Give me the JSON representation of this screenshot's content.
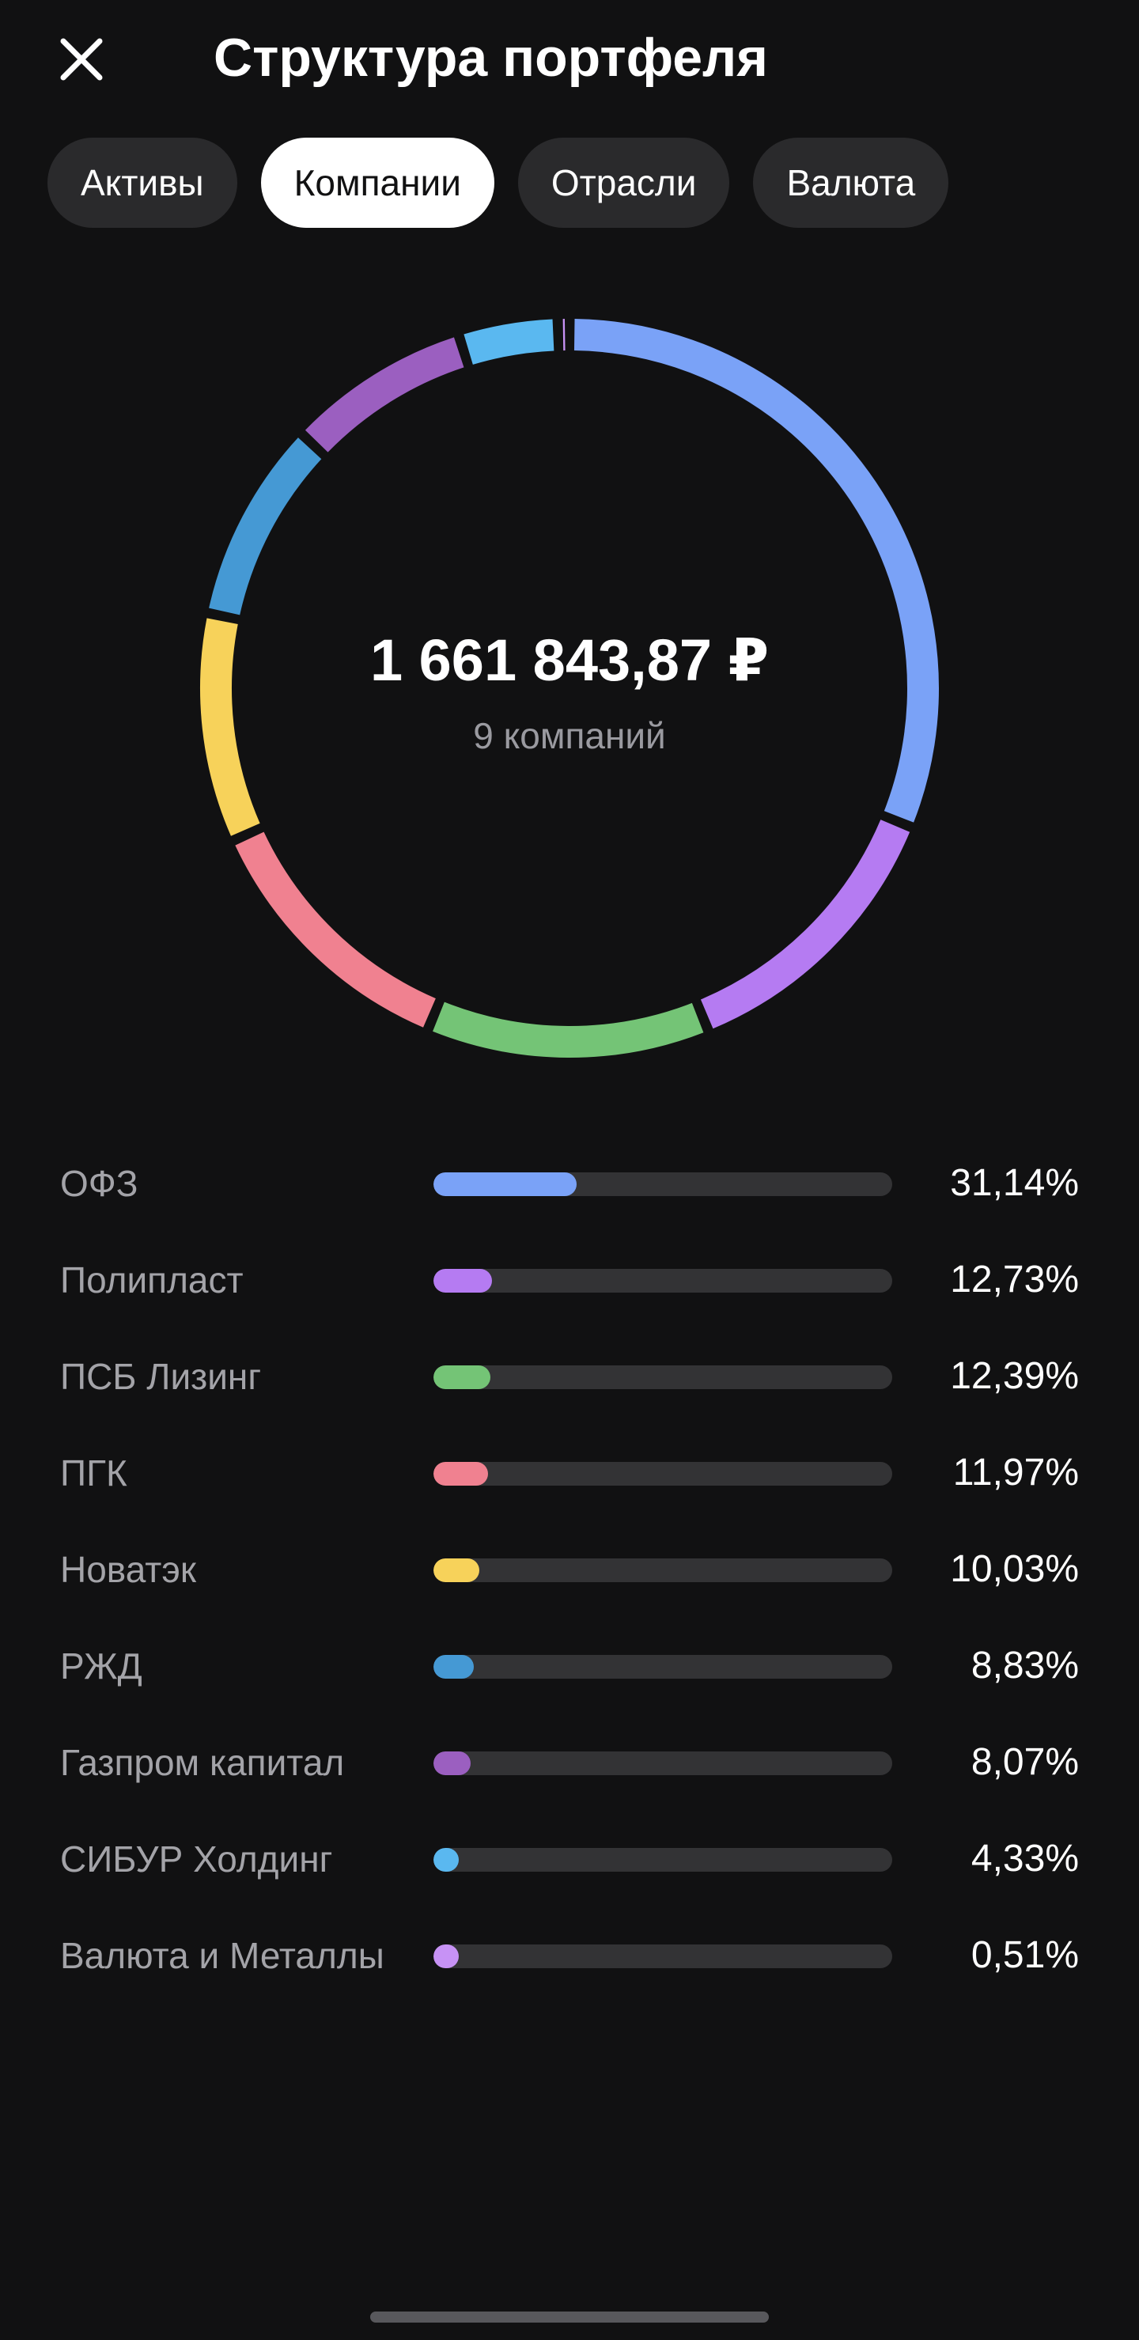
{
  "header": {
    "close_icon": "close-icon",
    "title": "Структура портфеля"
  },
  "tabs": [
    {
      "label": "Активы",
      "active": false
    },
    {
      "label": "Компании",
      "active": true
    },
    {
      "label": "Отрасли",
      "active": false
    },
    {
      "label": "Валюта",
      "active": false
    }
  ],
  "summary": {
    "amount": "1 661 843,87 ₽",
    "subtitle": "9 компаний"
  },
  "chart_data": {
    "type": "pie",
    "variant": "donut",
    "categories": [
      "ОФЗ",
      "Полипласт",
      "ПСБ Лизинг",
      "ПГК",
      "Новатэк",
      "РЖД",
      "Газпром капитал",
      "СИБУР Холдинг",
      "Валюта и Металлы"
    ],
    "values": [
      31.14,
      12.73,
      12.39,
      11.97,
      10.03,
      8.83,
      8.07,
      4.33,
      0.51
    ],
    "labels": [
      "31,14%",
      "12,73%",
      "12,39%",
      "11,97%",
      "10,03%",
      "8,83%",
      "8,07%",
      "4,33%",
      "0,51%"
    ],
    "colors": [
      "#7aa2f7",
      "#b57bf2",
      "#74c476",
      "#f08190",
      "#f7d25a",
      "#4599d4",
      "#9b5fc0",
      "#5ab8f0",
      "#c792f5"
    ],
    "start": "top",
    "direction": "clockwise"
  },
  "background_color": "#111112",
  "track_color": "#333335"
}
